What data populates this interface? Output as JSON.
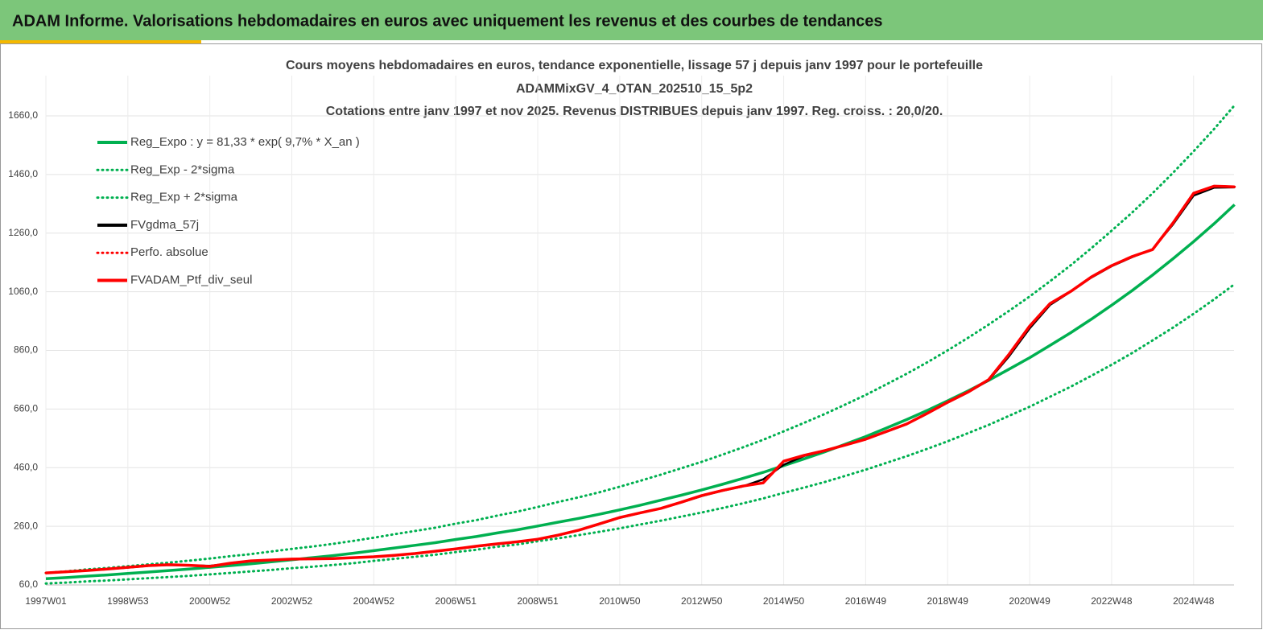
{
  "header": {
    "title": "ADAM Informe. Valorisations hebdomadaires en euros avec uniquement les revenus et des courbes de tendances"
  },
  "chart_data": {
    "type": "line",
    "title": "Cours moyens hebdomadaires  en euros, tendance exponentielle, lissage 57 j depuis janv 1997 pour le portefeuille",
    "subtitle": [
      "ADAMMixGV_4_OTAN_202510_15_5p2",
      "Cotations  entre janv 1997 et nov 2025. Revenus DISTRIBUES depuis janv 1997. Reg. croiss. : 20,0/20."
    ],
    "categories": [
      "1997W01",
      null,
      null,
      null,
      "1998W53",
      null,
      null,
      null,
      "2000W52",
      null,
      null,
      null,
      "2002W52",
      null,
      null,
      null,
      "2004W52",
      null,
      null,
      null,
      "2006W51",
      null,
      null,
      null,
      "2008W51",
      null,
      null,
      null,
      "2010W50",
      null,
      null,
      null,
      "2012W50",
      null,
      null,
      null,
      "2014W50",
      null,
      null,
      null,
      "2016W49",
      null,
      null,
      null,
      "2018W49",
      null,
      null,
      null,
      "2020W49",
      null,
      null,
      null,
      "2022W48",
      null,
      null,
      null,
      "2024W48",
      null,
      null
    ],
    "ylim": [
      60,
      1760
    ],
    "yticks": [
      {
        "value": 60,
        "label": "60,0"
      },
      {
        "value": 260,
        "label": "260,0"
      },
      {
        "value": 460,
        "label": "460,0"
      },
      {
        "value": 660,
        "label": "660,0"
      },
      {
        "value": 860,
        "label": "860,0"
      },
      {
        "value": 1060,
        "label": "1060,0"
      },
      {
        "value": 1260,
        "label": "1260,0"
      },
      {
        "value": 1460,
        "label": "1460,0"
      },
      {
        "value": 1660,
        "label": "1660,0"
      }
    ],
    "grid": true,
    "legend": "top-left",
    "series": [
      {
        "name": "Reg_Expo : y = 81,33 * exp( 9,7% *  X_an )",
        "color": "#00b050",
        "style": "solid",
        "values": [
          81,
          85,
          90,
          94,
          99,
          104,
          109,
          114,
          120,
          126,
          132,
          139,
          146,
          153,
          160,
          168,
          177,
          186,
          195,
          204,
          215,
          225,
          237,
          248,
          261,
          274,
          287,
          301,
          316,
          332,
          349,
          366,
          384,
          403,
          423,
          444,
          467,
          490,
          514,
          540,
          566,
          595,
          624,
          655,
          688,
          722,
          758,
          796,
          835,
          877,
          920,
          966,
          1014,
          1064,
          1117,
          1173,
          1231,
          1292,
          1357
        ]
      },
      {
        "name": "Reg_Exp - 2*sigma",
        "color": "#00b050",
        "style": "dotted",
        "values": [
          65,
          68,
          72,
          75,
          79,
          83,
          87,
          91,
          96,
          101,
          106,
          111,
          117,
          122,
          128,
          134,
          142,
          149,
          156,
          163,
          172,
          180,
          190,
          198,
          209,
          219,
          230,
          241,
          253,
          266,
          279,
          293,
          307,
          322,
          338,
          355,
          374,
          392,
          411,
          432,
          453,
          476,
          499,
          524,
          550,
          578,
          606,
          637,
          668,
          702,
          736,
          773,
          811,
          851,
          894,
          938,
          985,
          1034,
          1086
        ]
      },
      {
        "name": "Reg_Exp + 2*sigma",
        "color": "#00b050",
        "style": "dotted",
        "values": [
          101,
          106,
          113,
          118,
          124,
          130,
          136,
          143,
          150,
          158,
          165,
          174,
          183,
          191,
          200,
          210,
          221,
          233,
          244,
          255,
          269,
          281,
          296,
          310,
          326,
          343,
          359,
          376,
          395,
          415,
          436,
          458,
          480,
          504,
          529,
          555,
          584,
          613,
          643,
          675,
          708,
          744,
          780,
          819,
          860,
          903,
          948,
          995,
          1044,
          1096,
          1150,
          1208,
          1268,
          1330,
          1396,
          1466,
          1539,
          1615,
          1696
        ]
      },
      {
        "name": "FVgdma_57j",
        "color": "#000000",
        "style": "solid",
        "values": [
          101,
          105,
          109,
          114,
          119,
          125,
          128,
          127,
          125,
          133,
          141,
          145,
          147,
          149,
          150,
          153,
          156,
          161,
          167,
          175,
          183,
          191,
          199,
          207,
          216,
          229,
          246,
          267,
          289,
          305,
          321,
          341,
          363,
          381,
          396,
          420,
          470,
          500,
          517,
          537,
          557,
          582,
          608,
          644,
          682,
          717,
          758,
          840,
          935,
          1015,
          1060,
          1108,
          1147,
          1178,
          1205,
          1290,
          1388,
          1415,
          1416
        ]
      },
      {
        "name": "Perfo. absolue",
        "color": "#ff0000",
        "style": "dotted",
        "values": [
          101,
          105,
          109,
          114,
          120,
          126,
          129,
          127,
          123,
          134,
          142,
          145,
          148,
          149,
          150,
          153,
          156,
          161,
          167,
          175,
          183,
          192,
          200,
          207,
          216,
          230,
          247,
          268,
          290,
          306,
          321,
          342,
          365,
          382,
          397,
          408,
          482,
          502,
          518,
          537,
          557,
          583,
          609,
          645,
          683,
          718,
          760,
          847,
          943,
          1020,
          1061,
          1110,
          1149,
          1180,
          1204,
          1295,
          1396,
          1420,
          1418
        ]
      },
      {
        "name": "FVADAM_Ptf_div_seul",
        "color": "#ff0000",
        "style": "solid",
        "values": [
          101,
          105,
          109,
          114,
          120,
          126,
          129,
          127,
          123,
          134,
          142,
          145,
          148,
          149,
          150,
          153,
          156,
          161,
          167,
          175,
          183,
          192,
          200,
          207,
          216,
          230,
          247,
          268,
          290,
          306,
          321,
          342,
          365,
          382,
          397,
          408,
          482,
          502,
          518,
          537,
          557,
          583,
          609,
          645,
          683,
          718,
          760,
          847,
          943,
          1020,
          1061,
          1110,
          1149,
          1180,
          1204,
          1295,
          1396,
          1420,
          1418
        ]
      }
    ]
  }
}
